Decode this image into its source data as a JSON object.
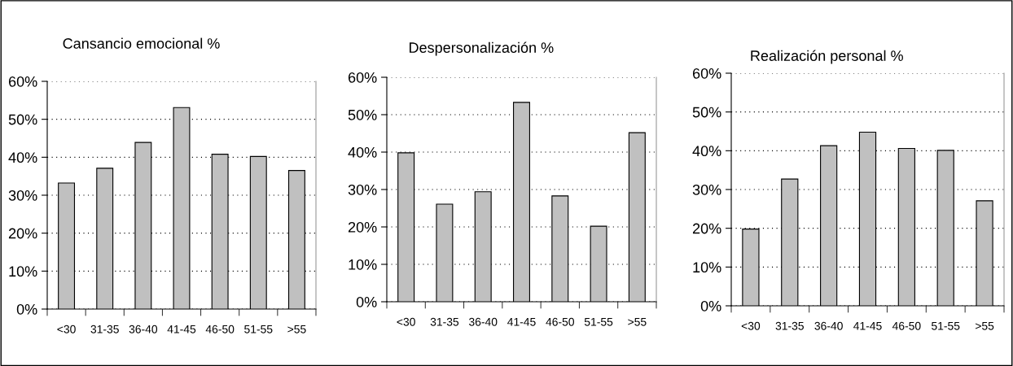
{
  "chart_data": [
    {
      "type": "bar",
      "title": "Cansancio emocional %",
      "categories": [
        "<30",
        "31-35",
        "36-40",
        "41-45",
        "46-50",
        "51-55",
        ">55"
      ],
      "values": [
        33.2,
        37.1,
        43.9,
        53.1,
        40.8,
        40.2,
        36.5
      ],
      "color": "#c0c0c0",
      "ylim": [
        0,
        60
      ],
      "yticks": [
        {
          "value": 0,
          "label": "0%"
        },
        {
          "value": 10,
          "label": "10%"
        },
        {
          "value": 20,
          "label": "20%"
        },
        {
          "value": 30,
          "label": "30%"
        },
        {
          "value": 40,
          "label": "40%"
        },
        {
          "value": 50,
          "label": "50%"
        },
        {
          "value": 60,
          "label": "60%"
        }
      ],
      "grid": "y",
      "legend": false
    },
    {
      "type": "bar",
      "title": "Despersonalización %",
      "categories": [
        "<30",
        "31-35",
        "36-40",
        "41-45",
        "46-50",
        "51-55",
        ">55"
      ],
      "values": [
        39.8,
        26.1,
        29.4,
        53.3,
        28.3,
        20.2,
        45.2
      ],
      "color": "#c0c0c0",
      "ylim": [
        0,
        60
      ],
      "yticks": [
        {
          "value": 0,
          "label": "0%"
        },
        {
          "value": 10,
          "label": "10%"
        },
        {
          "value": 20,
          "label": "20%"
        },
        {
          "value": 30,
          "label": "30%"
        },
        {
          "value": 40,
          "label": "40%"
        },
        {
          "value": 50,
          "label": "50%"
        },
        {
          "value": 60,
          "label": "60%"
        }
      ],
      "grid": "y",
      "legend": false
    },
    {
      "type": "bar",
      "title": "Realización personal %",
      "categories": [
        "<30",
        "31-35",
        "36-40",
        "41-45",
        "46-50",
        "51-55",
        ">55"
      ],
      "values": [
        19.8,
        32.7,
        41.3,
        44.8,
        40.6,
        40.1,
        27.1
      ],
      "color": "#c0c0c0",
      "ylim": [
        0,
        60
      ],
      "yticks": [
        {
          "value": 0,
          "label": "0%"
        },
        {
          "value": 10,
          "label": "10%"
        },
        {
          "value": 20,
          "label": "20%"
        },
        {
          "value": 30,
          "label": "30%"
        },
        {
          "value": 40,
          "label": "40%"
        },
        {
          "value": 50,
          "label": "50%"
        },
        {
          "value": 60,
          "label": "60%"
        }
      ],
      "grid": "y",
      "legend": false
    }
  ]
}
